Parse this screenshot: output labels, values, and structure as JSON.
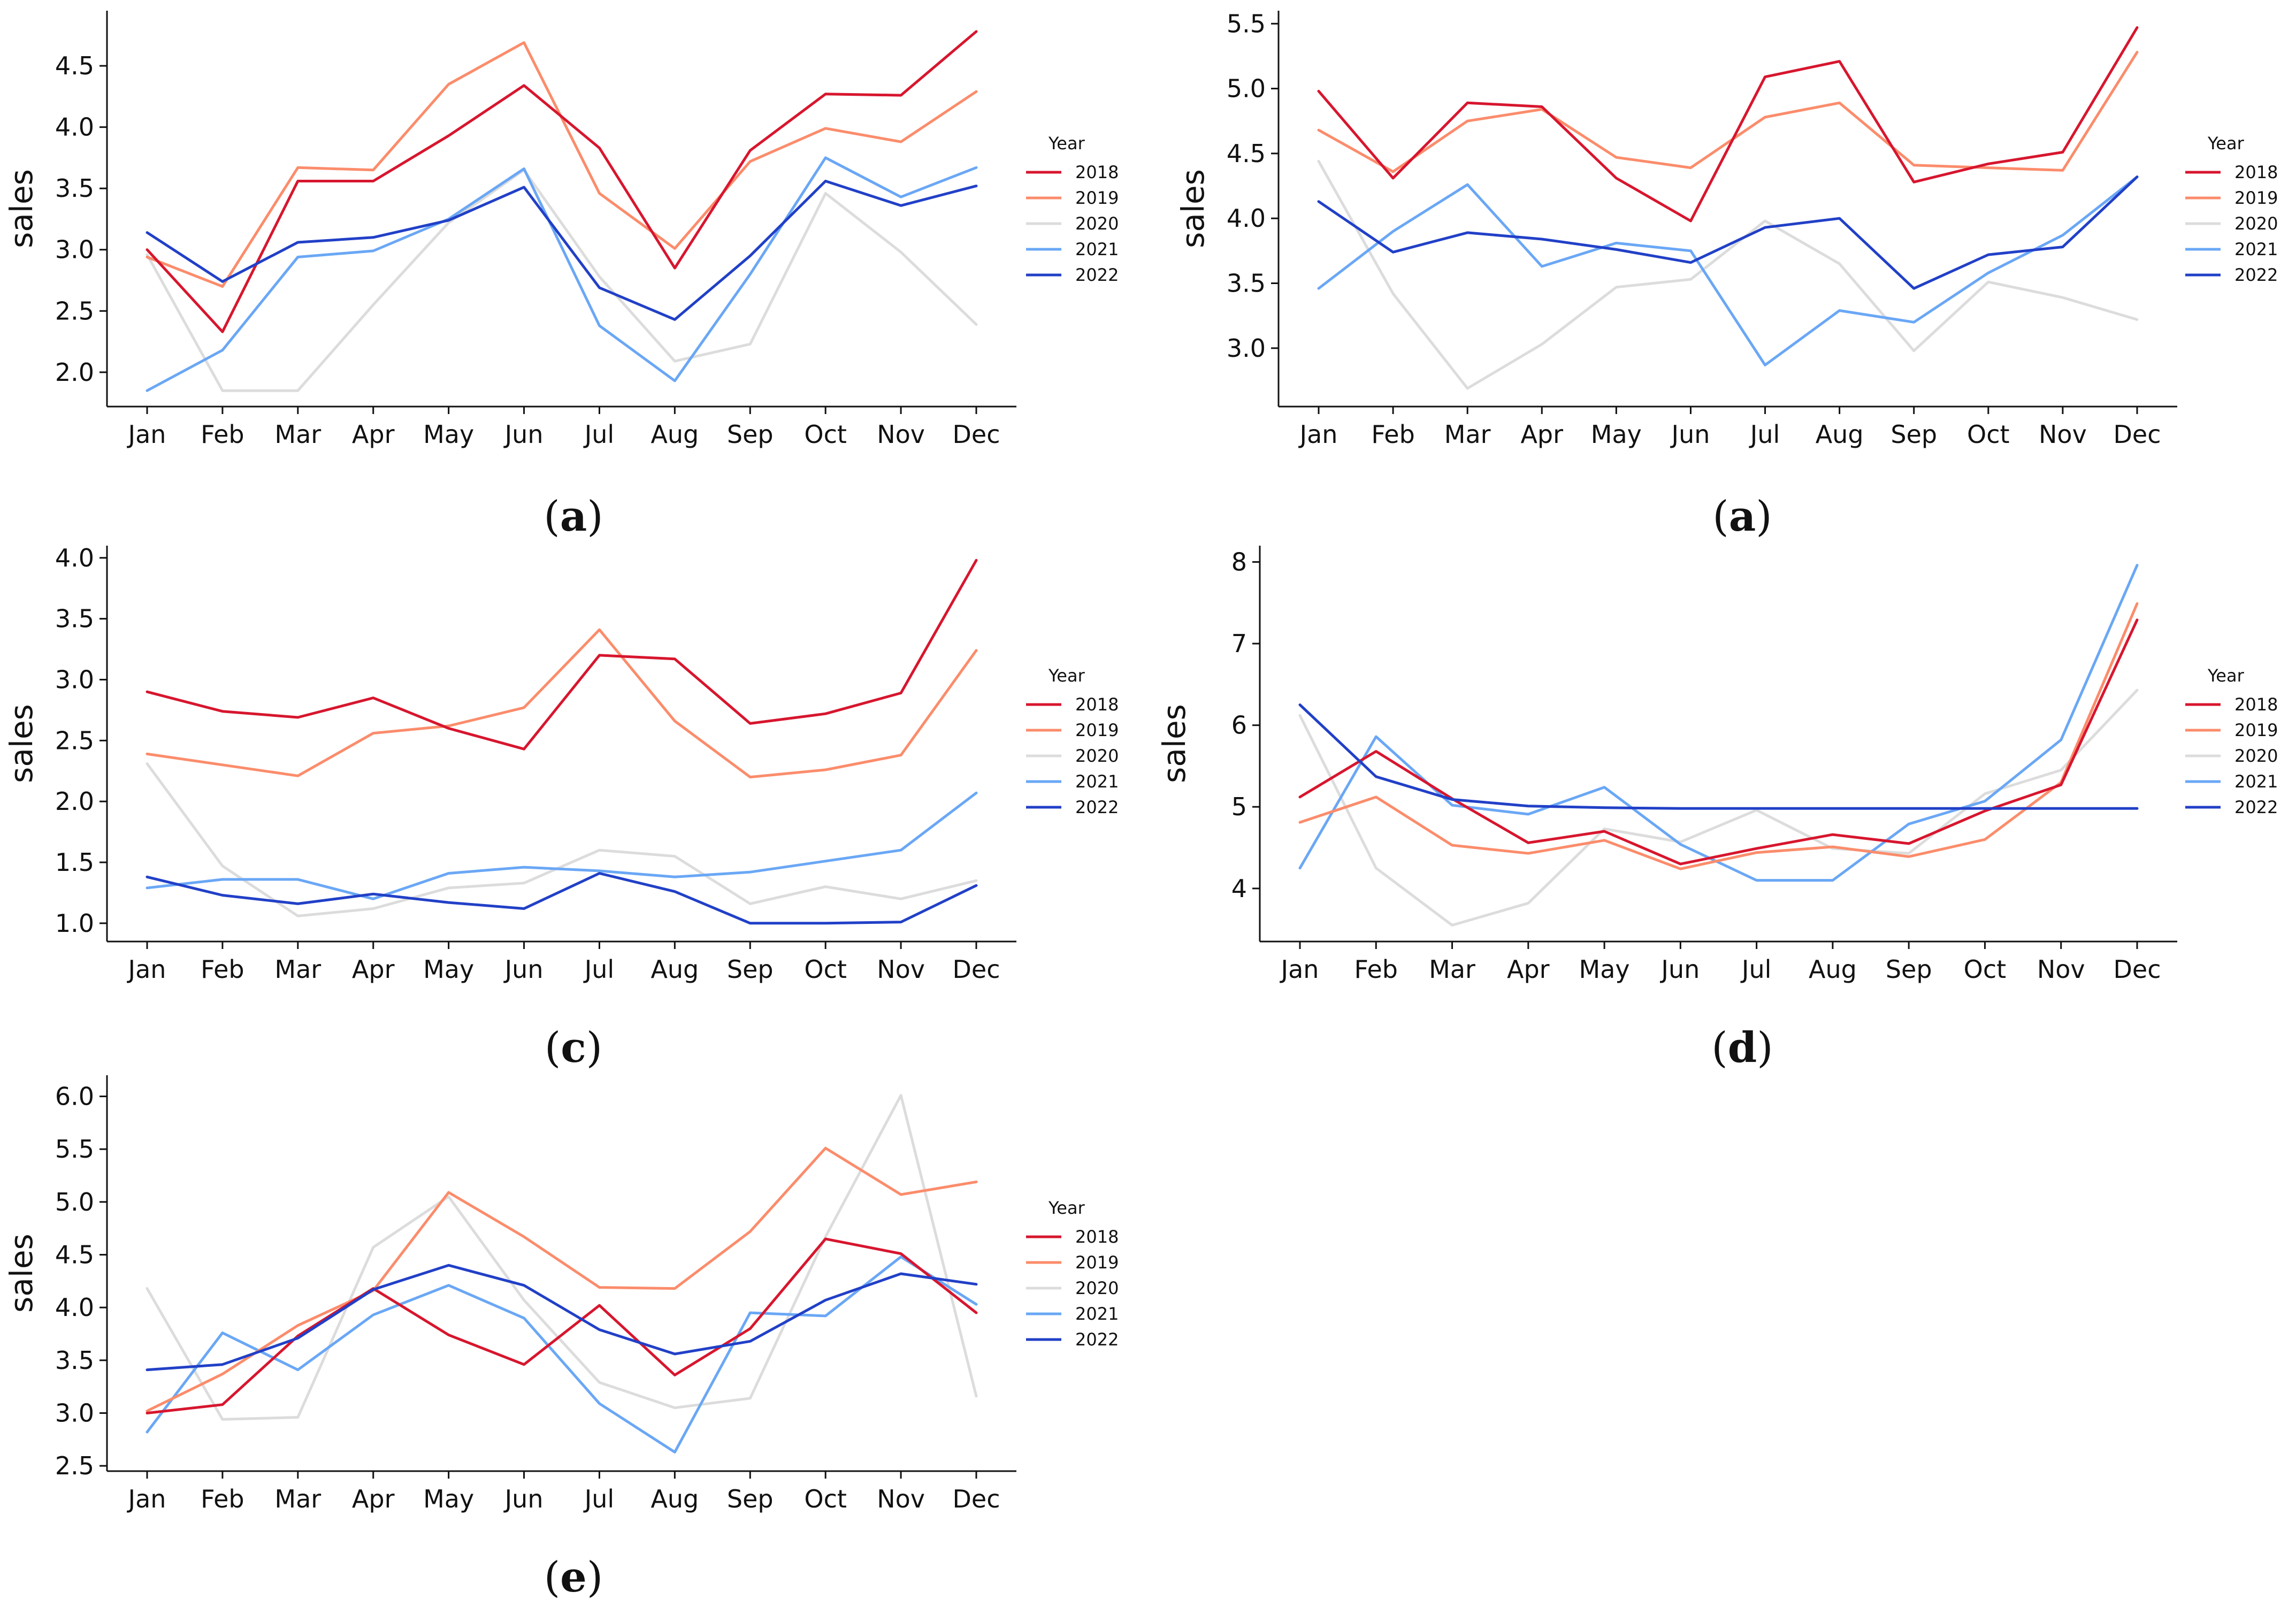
{
  "colors": {
    "2018": "#d7162e",
    "2019": "#fb8c6b",
    "2020": "#dcdcdc",
    "2021": "#6aa7f5",
    "2022": "#2140c7"
  },
  "chart_data": [
    {
      "type": "line",
      "caption": "a",
      "ylabel": "sales",
      "legend_title": "Year",
      "legend_position": "right",
      "categories": [
        "Jan",
        "Feb",
        "Mar",
        "Apr",
        "May",
        "Jun",
        "Jul",
        "Aug",
        "Sep",
        "Oct",
        "Nov",
        "Dec"
      ],
      "ylim": [
        1.72,
        4.95
      ],
      "yticks": [
        2.0,
        2.5,
        3.0,
        3.5,
        4.0,
        4.5
      ],
      "ytick_labels": [
        "2.0",
        "2.5",
        "3.0",
        "3.5",
        "4.0",
        "4.5"
      ],
      "series": [
        {
          "name": "2018",
          "values": [
            3.0,
            2.33,
            3.56,
            3.56,
            3.93,
            4.34,
            3.83,
            2.85,
            3.81,
            4.27,
            4.26,
            4.78
          ]
        },
        {
          "name": "2019",
          "values": [
            2.94,
            2.7,
            3.67,
            3.65,
            4.35,
            4.69,
            3.46,
            3.01,
            3.72,
            3.99,
            3.88,
            4.29
          ]
        },
        {
          "name": "2020",
          "values": [
            2.96,
            1.85,
            1.85,
            2.55,
            3.22,
            3.65,
            2.78,
            2.09,
            2.23,
            3.46,
            2.98,
            2.39
          ]
        },
        {
          "name": "2021",
          "values": [
            1.85,
            2.18,
            2.94,
            2.99,
            3.25,
            3.66,
            2.38,
            1.93,
            2.8,
            3.75,
            3.43,
            3.67
          ]
        },
        {
          "name": "2022",
          "values": [
            3.14,
            2.74,
            3.06,
            3.1,
            3.24,
            3.51,
            2.69,
            2.43,
            2.95,
            3.56,
            3.36,
            3.52
          ]
        }
      ]
    },
    {
      "type": "line",
      "caption": "a",
      "ylabel": "sales",
      "legend_title": "Year",
      "legend_position": "right",
      "categories": [
        "Jan",
        "Feb",
        "Mar",
        "Apr",
        "May",
        "Jun",
        "Jul",
        "Aug",
        "Sep",
        "Oct",
        "Nov",
        "Dec"
      ],
      "ylim": [
        2.55,
        5.6
      ],
      "yticks": [
        3.0,
        3.5,
        4.0,
        4.5,
        5.0,
        5.5
      ],
      "ytick_labels": [
        "3.0",
        "3.5",
        "4.0",
        "4.5",
        "5.0",
        "5.5"
      ],
      "series": [
        {
          "name": "2018",
          "values": [
            4.98,
            4.31,
            4.89,
            4.86,
            4.31,
            3.98,
            5.09,
            5.21,
            4.28,
            4.42,
            4.51,
            5.47
          ]
        },
        {
          "name": "2019",
          "values": [
            4.68,
            4.36,
            4.75,
            4.84,
            4.47,
            4.39,
            4.78,
            4.89,
            4.41,
            4.39,
            4.37,
            5.28
          ]
        },
        {
          "name": "2020",
          "values": [
            4.44,
            3.42,
            2.69,
            3.03,
            3.47,
            3.53,
            3.98,
            3.65,
            2.98,
            3.51,
            3.39,
            3.22
          ]
        },
        {
          "name": "2021",
          "values": [
            3.46,
            3.9,
            4.26,
            3.63,
            3.81,
            3.75,
            2.87,
            3.29,
            3.2,
            3.58,
            3.87,
            4.32
          ]
        },
        {
          "name": "2022",
          "values": [
            4.13,
            3.74,
            3.89,
            3.84,
            3.76,
            3.66,
            3.93,
            4.0,
            3.46,
            3.72,
            3.78,
            4.32
          ]
        }
      ]
    },
    {
      "type": "line",
      "caption": "c",
      "ylabel": "sales",
      "legend_title": "Year",
      "legend_position": "right",
      "categories": [
        "Jan",
        "Feb",
        "Mar",
        "Apr",
        "May",
        "Jun",
        "Jul",
        "Aug",
        "Sep",
        "Oct",
        "Nov",
        "Dec"
      ],
      "ylim": [
        0.85,
        4.1
      ],
      "yticks": [
        1.0,
        1.5,
        2.0,
        2.5,
        3.0,
        3.5,
        4.0
      ],
      "ytick_labels": [
        "1.0",
        "1.5",
        "2.0",
        "2.5",
        "3.0",
        "3.5",
        "4.0"
      ],
      "series": [
        {
          "name": "2018",
          "values": [
            2.9,
            2.74,
            2.69,
            2.85,
            2.6,
            2.43,
            3.2,
            3.17,
            2.64,
            2.72,
            2.89,
            3.98
          ]
        },
        {
          "name": "2019",
          "values": [
            2.39,
            2.3,
            2.21,
            2.56,
            2.62,
            2.77,
            3.41,
            2.66,
            2.2,
            2.26,
            2.38,
            3.24
          ]
        },
        {
          "name": "2020",
          "values": [
            2.31,
            1.47,
            1.06,
            1.12,
            1.29,
            1.33,
            1.6,
            1.55,
            1.16,
            1.3,
            1.2,
            1.35
          ]
        },
        {
          "name": "2021",
          "values": [
            1.29,
            1.36,
            1.36,
            1.2,
            1.41,
            1.46,
            1.43,
            1.38,
            1.42,
            1.51,
            1.6,
            2.07
          ]
        },
        {
          "name": "2022",
          "values": [
            1.38,
            1.23,
            1.16,
            1.24,
            1.17,
            1.12,
            1.41,
            1.26,
            1.0,
            1.0,
            1.01,
            1.31
          ]
        }
      ]
    },
    {
      "type": "line",
      "caption": "d",
      "ylabel": "sales",
      "legend_title": "Year",
      "legend_position": "right",
      "categories": [
        "Jan",
        "Feb",
        "Mar",
        "Apr",
        "May",
        "Jun",
        "Jul",
        "Aug",
        "Sep",
        "Oct",
        "Nov",
        "Dec"
      ],
      "ylim": [
        3.35,
        8.2
      ],
      "yticks": [
        4,
        5,
        6,
        7,
        8
      ],
      "ytick_labels": [
        "4",
        "5",
        "6",
        "7",
        "8"
      ],
      "series": [
        {
          "name": "2018",
          "values": [
            5.12,
            5.68,
            5.1,
            4.56,
            4.7,
            4.3,
            4.49,
            4.66,
            4.55,
            4.95,
            5.27,
            7.29
          ]
        },
        {
          "name": "2019",
          "values": [
            4.81,
            5.12,
            4.53,
            4.43,
            4.59,
            4.24,
            4.44,
            4.51,
            4.39,
            4.6,
            5.3,
            7.49
          ]
        },
        {
          "name": "2020",
          "values": [
            6.12,
            4.25,
            3.55,
            3.82,
            4.73,
            4.57,
            4.96,
            4.49,
            4.43,
            5.16,
            5.45,
            6.43
          ]
        },
        {
          "name": "2021",
          "values": [
            4.25,
            5.86,
            5.02,
            4.91,
            5.24,
            4.54,
            4.1,
            4.1,
            4.79,
            5.07,
            5.82,
            7.96
          ]
        },
        {
          "name": "2022",
          "values": [
            6.25,
            5.37,
            5.09,
            5.01,
            4.99,
            4.98,
            4.98,
            4.98,
            4.98,
            4.98,
            4.98,
            4.98
          ]
        }
      ]
    },
    {
      "type": "line",
      "caption": "e",
      "ylabel": "sales",
      "legend_title": "Year",
      "legend_position": "right",
      "categories": [
        "Jan",
        "Feb",
        "Mar",
        "Apr",
        "May",
        "Jun",
        "Jul",
        "Aug",
        "Sep",
        "Oct",
        "Nov",
        "Dec"
      ],
      "ylim": [
        2.45,
        6.2
      ],
      "yticks": [
        2.5,
        3.0,
        3.5,
        4.0,
        4.5,
        5.0,
        5.5,
        6.0
      ],
      "ytick_labels": [
        "2.5",
        "3.0",
        "3.5",
        "4.0",
        "4.5",
        "5.0",
        "5.5",
        "6.0"
      ],
      "series": [
        {
          "name": "2018",
          "values": [
            3.0,
            3.08,
            3.73,
            4.18,
            3.74,
            3.46,
            4.02,
            3.36,
            3.8,
            4.65,
            4.51,
            3.95
          ]
        },
        {
          "name": "2019",
          "values": [
            3.02,
            3.37,
            3.83,
            4.16,
            5.09,
            4.67,
            4.19,
            4.18,
            4.72,
            5.51,
            5.07,
            5.19
          ]
        },
        {
          "name": "2020",
          "values": [
            4.18,
            2.94,
            2.96,
            4.57,
            5.05,
            4.07,
            3.29,
            3.05,
            3.14,
            4.67,
            6.01,
            3.16
          ]
        },
        {
          "name": "2021",
          "values": [
            2.82,
            3.76,
            3.41,
            3.93,
            4.21,
            3.9,
            3.09,
            2.63,
            3.95,
            3.92,
            4.48,
            4.03
          ]
        },
        {
          "name": "2022",
          "values": [
            3.41,
            3.46,
            3.71,
            4.17,
            4.4,
            4.21,
            3.79,
            3.56,
            3.68,
            4.07,
            4.32,
            4.22
          ]
        }
      ]
    }
  ]
}
